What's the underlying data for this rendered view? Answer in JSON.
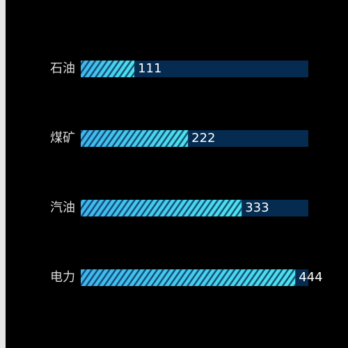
{
  "chart_data": {
    "type": "bar",
    "orientation": "horizontal",
    "categories": [
      "石油",
      "煤矿",
      "汽油",
      "电力"
    ],
    "values": [
      111,
      222,
      333,
      444
    ],
    "xlim": [
      0,
      471
    ],
    "color": "#3fb6ec",
    "color_end": "#4ee3ea",
    "track_color": "#052b50"
  }
}
